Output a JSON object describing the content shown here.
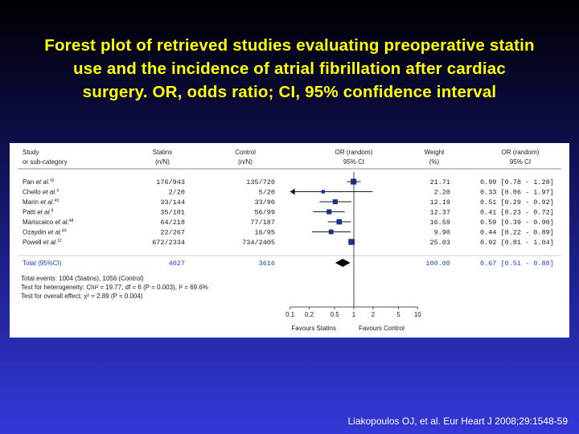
{
  "title": {
    "line1": "Forest plot of retrieved studies evaluating preoperative statin",
    "line2": "use and the incidence of atrial fibrillation after cardiac",
    "line3": "surgery. OR, odds ratio; CI, 95% confidence interval"
  },
  "citation": "Liakopoulos OJ, et al. Eur Heart J 2008;29:1548-59",
  "chart_data": {
    "type": "forest",
    "headers": {
      "study": "Study",
      "study_sub": "or sub-category",
      "statins": "Statins",
      "statins_sub": "(n/N)",
      "control": "Control",
      "control_sub": "(n/N)",
      "or": "OR (random)",
      "or_sub": "95% CI",
      "weight": "Weight",
      "weight_sub": "(%)",
      "or2": "OR (random)",
      "or2_sub": "95% CI"
    },
    "xaxis": {
      "scale": "log",
      "ticks": [
        0.1,
        0.2,
        0.5,
        1,
        2,
        5,
        10
      ],
      "tick_labels": [
        "0.1",
        "0.2",
        "0.5",
        "1",
        "2",
        "5",
        "10"
      ],
      "left_label": "Favours Statins",
      "right_label": "Favours Control"
    },
    "studies": [
      {
        "name": "Pan et al.",
        "ref": "10",
        "statins": "176/943",
        "control": "135/720",
        "weight": "21.71",
        "ci_text": "0.99 [0.78 - 1.28]",
        "or": 0.99,
        "lo": 0.78,
        "hi": 1.28
      },
      {
        "name": "Chello et al.",
        "ref": "4",
        "statins": "2/20",
        "control": "5/20",
        "weight": "2.20",
        "ci_text": "0.33 [0.06 - 1.97]",
        "or": 0.33,
        "lo": 0.06,
        "hi": 1.97
      },
      {
        "name": "Marin et al.",
        "ref": "43",
        "statins": "33/144",
        "control": "33/90",
        "weight": "12.19",
        "ci_text": "0.51 [0.29 - 0.92]",
        "or": 0.51,
        "lo": 0.29,
        "hi": 0.92
      },
      {
        "name": "Patti et al.",
        "ref": "8",
        "statins": "35/101",
        "control": "56/99",
        "weight": "12.37",
        "ci_text": "0.41 [0.23 - 0.72]",
        "or": 0.41,
        "lo": 0.23,
        "hi": 0.72
      },
      {
        "name": "Mariscalco et al.",
        "ref": "48",
        "statins": "64/218",
        "control": "77/187",
        "weight": "16.59",
        "ci_text": "0.59 [0.39 - 0.90]",
        "or": 0.59,
        "lo": 0.39,
        "hi": 0.9
      },
      {
        "name": "Ozaydin et al.",
        "ref": "49",
        "statins": "22/267",
        "control": "16/95",
        "weight": "9.90",
        "ci_text": "0.44 [0.22 - 0.89]",
        "or": 0.44,
        "lo": 0.22,
        "hi": 0.89
      },
      {
        "name": "Powell et al.",
        "ref": "12",
        "statins": "672/2334",
        "control": "734/2405",
        "weight": "25.03",
        "ci_text": "0.92 [0.81 - 1.04]",
        "or": 0.92,
        "lo": 0.81,
        "hi": 1.04
      }
    ],
    "total": {
      "label": "Total (95%CI)",
      "statins": "4027",
      "control": "3616",
      "weight": "100.00",
      "ci_text": "0.67 [0.51 - 0.88]",
      "or": 0.67,
      "lo": 0.51,
      "hi": 0.88
    },
    "footer": {
      "events": "Total events: 1004 (Statins), 1056 (Control)",
      "heterogeneity": "Test for heterogeneity: Chi² = 19.77, df = 6 (P = 0.003), I² = 69.6%",
      "overall": "Test for overall effect: χ² = 2.89 (P = 0.004)"
    }
  }
}
